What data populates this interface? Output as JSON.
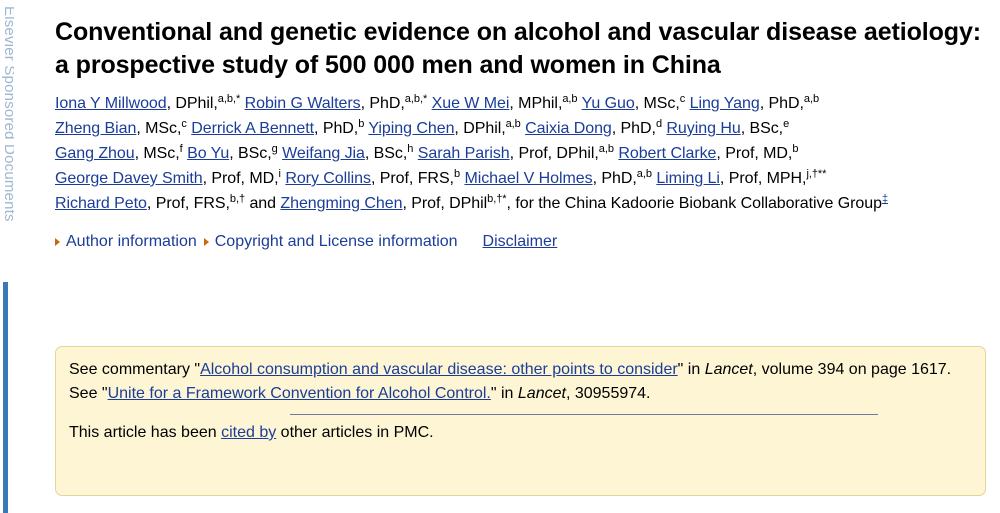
{
  "side_banner": {
    "text": "Elsevier Sponsored Documents"
  },
  "article": {
    "title": "Conventional and genetic evidence on alcohol and vascular disease aetiology: a prospective study of 500 000 men and women in China"
  },
  "authors": [
    {
      "name": "Iona Y Millwood",
      "degree": ", DPhil,",
      "sup": "a,b,*"
    },
    {
      "name": "Robin G Walters",
      "degree": ", PhD,",
      "sup": "a,b,*"
    },
    {
      "name": "Xue W Mei",
      "degree": ", MPhil,",
      "sup": "a,b"
    },
    {
      "name": "Yu Guo",
      "degree": ", MSc,",
      "sup": "c"
    },
    {
      "name": "Ling Yang",
      "degree": ", PhD,",
      "sup": "a,b"
    },
    {
      "name": "Zheng Bian",
      "degree": ", MSc,",
      "sup": "c"
    },
    {
      "name": "Derrick A Bennett",
      "degree": ", PhD,",
      "sup": "b"
    },
    {
      "name": "Yiping Chen",
      "degree": ", DPhil,",
      "sup": "a,b"
    },
    {
      "name": "Caixia Dong",
      "degree": ", PhD,",
      "sup": "d"
    },
    {
      "name": "Ruying Hu",
      "degree": ", BSc,",
      "sup": "e"
    },
    {
      "name": "Gang Zhou",
      "degree": ", MSc,",
      "sup": "f"
    },
    {
      "name": "Bo Yu",
      "degree": ", BSc,",
      "sup": "g"
    },
    {
      "name": "Weifang Jia",
      "degree": ", BSc,",
      "sup": "h"
    },
    {
      "name": "Sarah Parish",
      "degree": ", Prof, DPhil,",
      "sup": "a,b"
    },
    {
      "name": "Robert Clarke",
      "degree": ", Prof, MD,",
      "sup": "b"
    },
    {
      "name": "George Davey Smith",
      "degree": ", Prof, MD,",
      "sup": "i"
    },
    {
      "name": "Rory Collins",
      "degree": ", Prof, FRS,",
      "sup": "b"
    },
    {
      "name": "Michael V Holmes",
      "degree": ", PhD,",
      "sup": "a,b"
    },
    {
      "name": "Liming Li",
      "degree": ", Prof, MPH,",
      "sup": "j,†**"
    },
    {
      "name": "Richard Peto",
      "degree": ", Prof, FRS,",
      "sup": "b,†"
    },
    {
      "name": "Zhengming Chen",
      "degree": ", Prof, DPhil",
      "sup": "b,†*"
    }
  ],
  "author_connectors": {
    "and": " and ",
    "group_text": ", for the China Kadoorie Biobank Collaborative Group",
    "group_sup": "‡"
  },
  "info_links": {
    "author_info": "Author information",
    "copyright": "Copyright and License information",
    "disclaimer": "Disclaimer"
  },
  "notice": {
    "line1_prefix": "See commentary \"",
    "commentary_link": "Alcohol consumption and vascular disease: other points to consider",
    "line1_mid": "\" in ",
    "journal": "Lancet",
    "line1_suffix": ", volume 394 on page 1617.",
    "line2_prefix": "See \"",
    "framework_link": "Unite for a Framework Convention for Alcohol Control.",
    "line2_mid": "\" in ",
    "line2_suffix": ", 30955974.",
    "cited_prefix": "This article has been ",
    "cited_link": "cited by",
    "cited_suffix": " other articles in PMC."
  },
  "colors": {
    "link": "#1b3d9a",
    "notice_bg": "#fdf5d4",
    "notice_border": "#e5d49c",
    "side_bar": "#3b79b6",
    "triangle": "#c56a12"
  }
}
